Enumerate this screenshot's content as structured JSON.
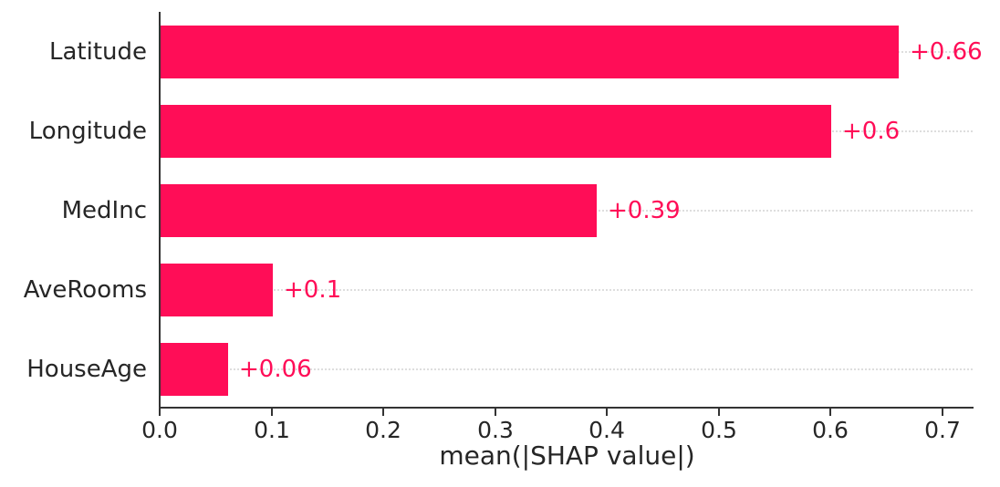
{
  "chart_data": {
    "type": "bar",
    "orientation": "horizontal",
    "title": "",
    "xlabel": "mean(|SHAP value|)",
    "ylabel": "",
    "categories": [
      "Latitude",
      "Longitude",
      "MedInc",
      "AveRooms",
      "HouseAge"
    ],
    "values": [
      0.66,
      0.6,
      0.39,
      0.1,
      0.06
    ],
    "value_labels": [
      "+0.66",
      "+0.6",
      "+0.39",
      "+0.1",
      "+0.06"
    ],
    "xlim": [
      0.0,
      0.727
    ],
    "xticks": [
      0.0,
      0.1,
      0.2,
      0.3,
      0.4,
      0.5,
      0.6,
      0.7
    ],
    "xtick_labels": [
      "0.0",
      "0.1",
      "0.2",
      "0.3",
      "0.4",
      "0.5",
      "0.6",
      "0.7"
    ],
    "bar_color": "#ff0d57",
    "value_label_color": "#ff0d57",
    "axis_color": "#333333",
    "text_color": "#262626",
    "gridline_color": "#dedede",
    "grid": "horizontal-dotted-at-bar-centers",
    "legend": "none",
    "background": "#ffffff"
  }
}
